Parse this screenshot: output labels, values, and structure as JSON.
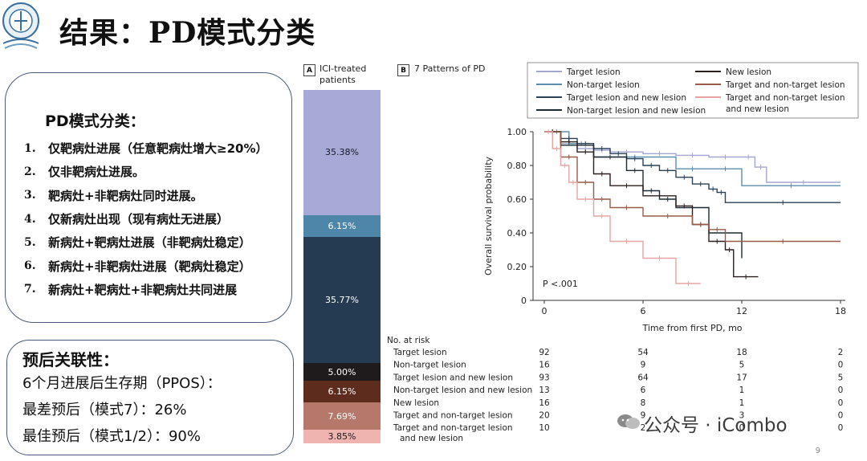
{
  "slide": {
    "title": "结果：PD模式分类",
    "page_number": "9",
    "watermark": "公众号 · iCombo"
  },
  "patterns": {
    "title": "PD模式分类：",
    "items": [
      {
        "num": "1.",
        "text": "仅靶病灶进展（任意靶病灶增大≥20%）"
      },
      {
        "num": "2.",
        "text": "仅非靶病灶进展。"
      },
      {
        "num": "3.",
        "text": "靶病灶+非靶病灶同时进展。"
      },
      {
        "num": "4.",
        "text": "仅新病灶出现（现有病灶无进展）"
      },
      {
        "num": "5.",
        "text": "新病灶+靶病灶进展（非靶病灶稳定）"
      },
      {
        "num": "6.",
        "text": "新病灶+非靶病灶进展（靶病灶稳定）"
      },
      {
        "num": "7.",
        "text": "新病灶+靶病灶+非靶病灶共同进展"
      }
    ]
  },
  "prognosis": {
    "title": "预后关联性：",
    "lines": [
      "6个月进展后生存期（PPOS）：",
      "最差预后（模式7）：26%",
      "最佳预后（模式1/2）：90%"
    ]
  },
  "panel_a": {
    "letter": "A",
    "label_line1": "ICI-treated",
    "label_line2": "patients",
    "segments": [
      {
        "label": "35.38%",
        "value": 35.38,
        "color": "#a7a9d6",
        "text_color": "#1a1a2a"
      },
      {
        "label": "6.15%",
        "value": 6.15,
        "color": "#4d86a8",
        "text_color": "#ffffff"
      },
      {
        "label": "35.77%",
        "value": 35.77,
        "color": "#243b52",
        "text_color": "#ffffff"
      },
      {
        "label": "5.00%",
        "value": 5.0,
        "color": "#1f1a1c",
        "text_color": "#ffffff"
      },
      {
        "label": "6.15%",
        "value": 6.15,
        "color": "#5e2c1c",
        "text_color": "#ffffff"
      },
      {
        "label": "7.69%",
        "value": 7.69,
        "color": "#b5786a",
        "text_color": "#ffffff"
      },
      {
        "label": "3.85%",
        "value": 3.85,
        "color": "#efb3b0",
        "text_color": "#1a1a1a"
      }
    ]
  },
  "panel_b": {
    "letter": "B",
    "label": "7 Patterns of PD"
  },
  "chart_data": {
    "type": "line",
    "subtype": "kaplan-meier",
    "xlabel": "Time from first PD, mo",
    "ylabel": "Overall survival probability",
    "xlim": [
      0,
      18
    ],
    "ylim": [
      0,
      1.0
    ],
    "xticks": [
      "0",
      "6",
      "12",
      "18"
    ],
    "yticks": [
      "0",
      "0.20",
      "0.40",
      "0.60",
      "0.80",
      "1.00"
    ],
    "annotation": "P <.001",
    "legend_position": "top",
    "series": [
      {
        "name": "Target lesion",
        "color": "#a3a6cf",
        "x": [
          0,
          1,
          2,
          3,
          4,
          6,
          8,
          10,
          12,
          12.8,
          13.5,
          18
        ],
        "y": [
          1.0,
          0.93,
          0.9,
          0.89,
          0.88,
          0.87,
          0.86,
          0.85,
          0.85,
          0.79,
          0.7,
          0.7
        ]
      },
      {
        "name": "Non-target lesion",
        "color": "#5c8fae",
        "x": [
          0,
          1.5,
          3,
          8,
          10,
          12,
          18
        ],
        "y": [
          1.0,
          0.93,
          0.85,
          0.78,
          0.78,
          0.68,
          0.68
        ]
      },
      {
        "name": "Target lesion and new lesion",
        "color": "#2a4158",
        "x": [
          0,
          1,
          2,
          3,
          4,
          5,
          6,
          7,
          8,
          9,
          10,
          10.5,
          11,
          18
        ],
        "y": [
          1.0,
          0.96,
          0.93,
          0.9,
          0.87,
          0.84,
          0.8,
          0.77,
          0.73,
          0.69,
          0.66,
          0.64,
          0.58,
          0.58
        ]
      },
      {
        "name": "Non-target lesion and new lesion",
        "color": "#1c2a34",
        "x": [
          0,
          1,
          3,
          5,
          6,
          7,
          8,
          10,
          12
        ],
        "y": [
          1.0,
          0.92,
          0.85,
          0.77,
          0.65,
          0.6,
          0.55,
          0.4,
          0.25
        ]
      },
      {
        "name": "New lesion",
        "color": "#2b1f1f",
        "x": [
          0,
          1,
          2,
          3,
          4,
          6,
          8,
          9,
          10,
          11,
          11.5,
          13
        ],
        "y": [
          1.0,
          0.94,
          0.88,
          0.75,
          0.68,
          0.62,
          0.56,
          0.45,
          0.35,
          0.3,
          0.14,
          0.14
        ]
      },
      {
        "name": "Target and non-target lesion",
        "color": "#9a5a48",
        "x": [
          0,
          1,
          2,
          3,
          4,
          6,
          9,
          10,
          11,
          18
        ],
        "y": [
          1.0,
          0.85,
          0.7,
          0.6,
          0.55,
          0.5,
          0.45,
          0.42,
          0.35,
          0.35
        ]
      },
      {
        "name": "Target and non-target lesion and new lesion",
        "color": "#e5a4a2",
        "x": [
          0,
          0.5,
          1,
          1.5,
          2,
          3,
          4,
          6,
          8,
          9.5
        ],
        "y": [
          1.0,
          0.9,
          0.8,
          0.7,
          0.6,
          0.5,
          0.35,
          0.25,
          0.1,
          0.1
        ]
      }
    ],
    "risk_table": {
      "title": "No. at risk",
      "time_points": [
        0,
        6,
        12,
        18
      ],
      "rows": [
        {
          "label": "Target lesion",
          "values": [
            "92",
            "54",
            "18",
            "2"
          ]
        },
        {
          "label": "Non-target lesion",
          "values": [
            "16",
            "9",
            "5",
            "0"
          ]
        },
        {
          "label": "Target lesion and new lesion",
          "values": [
            "93",
            "64",
            "17",
            "5"
          ]
        },
        {
          "label": "Non-target lesion and new lesion",
          "values": [
            "13",
            "6",
            "1",
            "0"
          ]
        },
        {
          "label": "New lesion",
          "values": [
            "16",
            "8",
            "1",
            "0"
          ]
        },
        {
          "label": "Target and non-target lesion",
          "values": [
            "20",
            "9",
            "3",
            "0"
          ]
        },
        {
          "label": "Target and non-target lesion\nand new lesion",
          "values": [
            "10",
            "2",
            "0",
            "0"
          ]
        }
      ]
    }
  }
}
